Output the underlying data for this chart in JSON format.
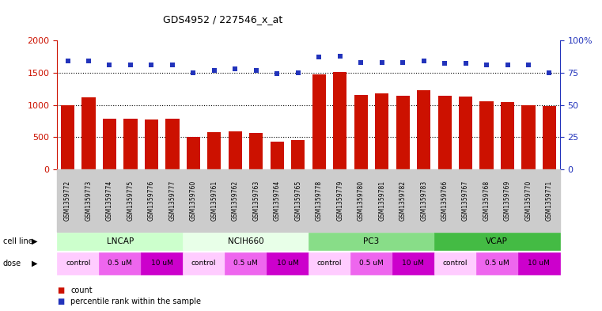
{
  "title": "GDS4952 / 227546_x_at",
  "samples": [
    "GSM1359772",
    "GSM1359773",
    "GSM1359774",
    "GSM1359775",
    "GSM1359776",
    "GSM1359777",
    "GSM1359760",
    "GSM1359761",
    "GSM1359762",
    "GSM1359763",
    "GSM1359764",
    "GSM1359765",
    "GSM1359778",
    "GSM1359779",
    "GSM1359780",
    "GSM1359781",
    "GSM1359782",
    "GSM1359783",
    "GSM1359766",
    "GSM1359767",
    "GSM1359768",
    "GSM1359769",
    "GSM1359770",
    "GSM1359771"
  ],
  "counts": [
    1000,
    1120,
    790,
    790,
    770,
    790,
    500,
    580,
    590,
    570,
    430,
    460,
    1470,
    1510,
    1160,
    1180,
    1140,
    1230,
    1140,
    1130,
    1060,
    1050,
    1000,
    980
  ],
  "percentile_ranks": [
    84,
    84,
    81,
    81,
    81,
    81,
    75,
    77,
    78,
    77,
    74,
    75,
    87,
    88,
    83,
    83,
    83,
    84,
    82,
    82,
    81,
    81,
    81,
    75
  ],
  "bar_color": "#cc1100",
  "dot_color": "#2233bb",
  "ylim_left": [
    0,
    2000
  ],
  "ylim_right": [
    0,
    100
  ],
  "yticks_left": [
    0,
    500,
    1000,
    1500,
    2000
  ],
  "yticks_right": [
    0,
    25,
    50,
    75,
    100
  ],
  "cl_names": [
    "LNCAP",
    "NCIH660",
    "PC3",
    "VCAP"
  ],
  "cl_ranges": [
    [
      0,
      6
    ],
    [
      6,
      12
    ],
    [
      12,
      18
    ],
    [
      18,
      24
    ]
  ],
  "cl_colors": [
    "#ccffcc",
    "#e8ffe8",
    "#88dd88",
    "#44bb44"
  ],
  "dose_names": [
    "control",
    "0.5 uM",
    "10 uM",
    "control",
    "0.5 uM",
    "10 uM",
    "control",
    "0.5 uM",
    "10 uM",
    "control",
    "0.5 uM",
    "10 uM"
  ],
  "dose_ranges": [
    [
      0,
      2
    ],
    [
      2,
      4
    ],
    [
      4,
      6
    ],
    [
      6,
      8
    ],
    [
      8,
      10
    ],
    [
      10,
      12
    ],
    [
      12,
      14
    ],
    [
      14,
      16
    ],
    [
      16,
      18
    ],
    [
      18,
      20
    ],
    [
      20,
      22
    ],
    [
      22,
      24
    ]
  ],
  "dose_colors": [
    "#ffccff",
    "#ee66ee",
    "#cc00cc",
    "#ffccff",
    "#ee66ee",
    "#cc00cc",
    "#ffccff",
    "#ee66ee",
    "#cc00cc",
    "#ffccff",
    "#ee66ee",
    "#cc00cc"
  ],
  "n_bars": 24,
  "background_color": "#ffffff"
}
